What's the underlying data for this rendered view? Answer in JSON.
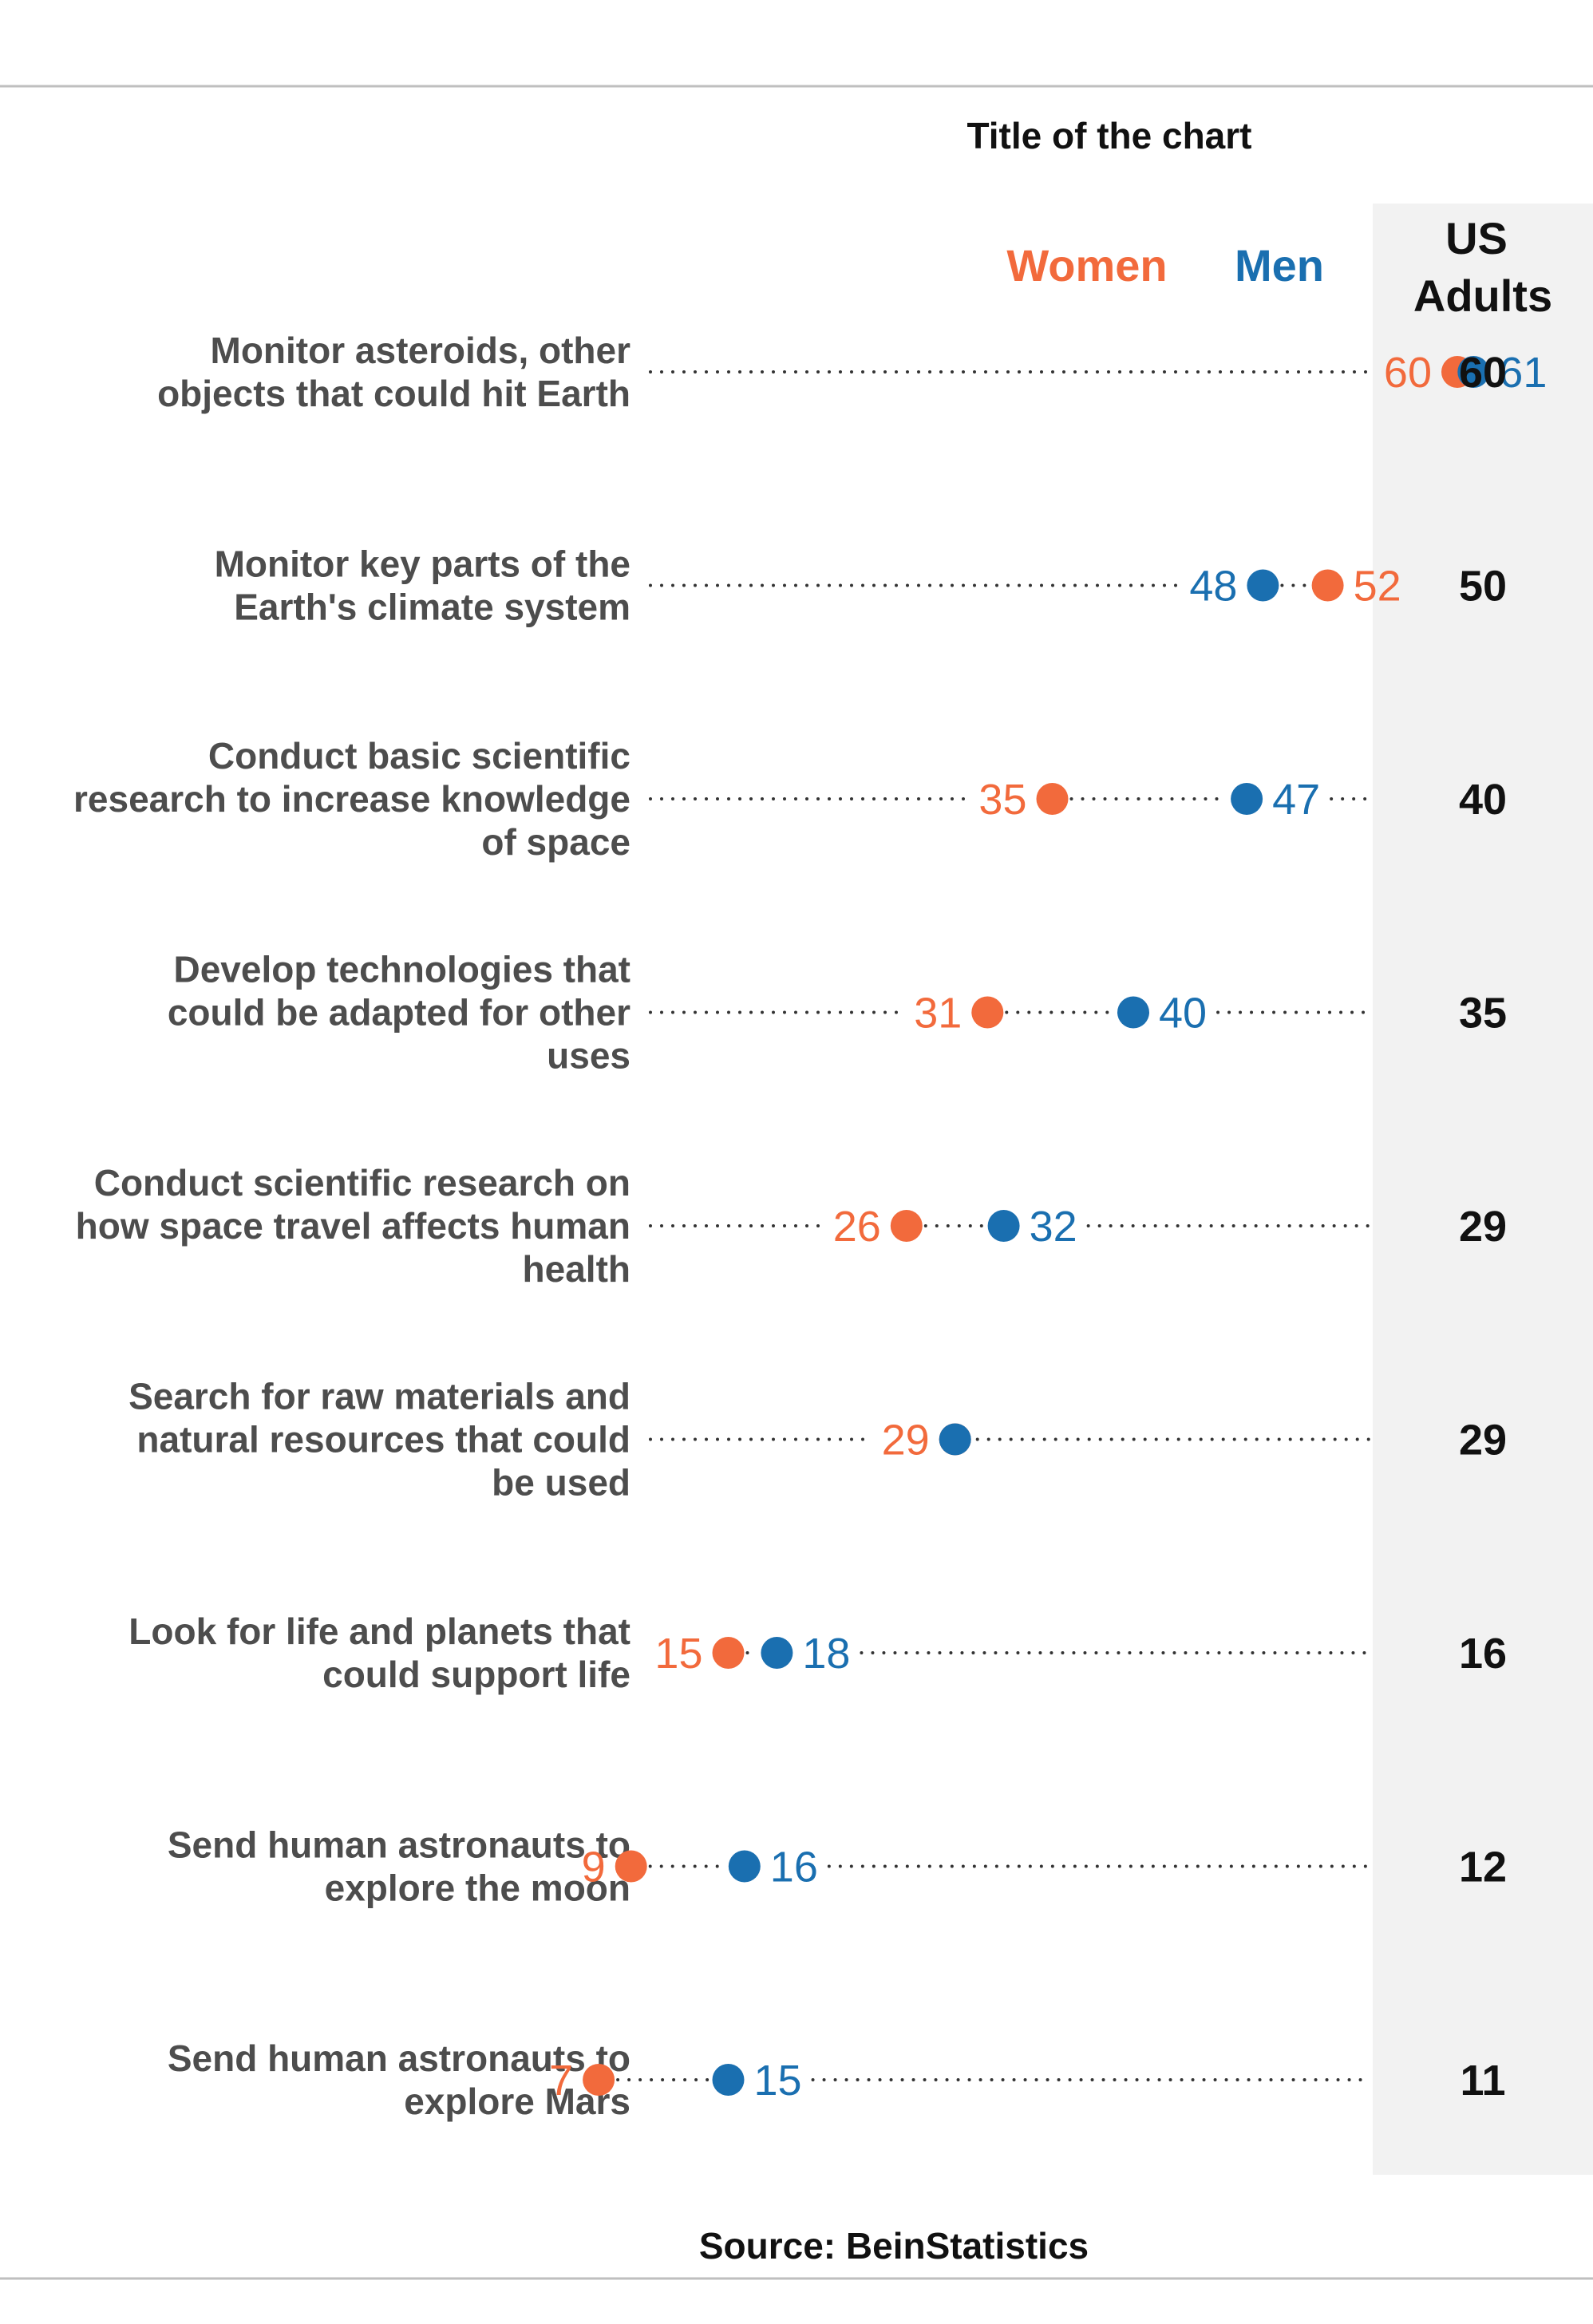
{
  "colors": {
    "women": "#F26A3C",
    "men": "#1A6FB0",
    "label": "#4D4D4D",
    "text": "#111111",
    "panel": "#F2F2F2",
    "rule": "#BFBFBF",
    "dots": "#333333"
  },
  "chart_data": {
    "type": "dot-plot",
    "title": "Title of the chart",
    "source": "Source: BeinStatistics",
    "xlim": [
      0,
      70
    ],
    "legend": {
      "women": "Women",
      "men": "Men",
      "us_header_line1": "US",
      "us_header_line2": "Adults"
    },
    "rows": [
      {
        "label": [
          "Monitor asteroids, other",
          "objects that could hit Earth"
        ],
        "women": 60,
        "men": 61,
        "us_adults": 60
      },
      {
        "label": [
          "Monitor key parts of the",
          "Earth's climate system"
        ],
        "women": 52,
        "men": 48,
        "us_adults": 50
      },
      {
        "label": [
          "Conduct basic scientific",
          "research to increase knowledge",
          "of space"
        ],
        "women": 35,
        "men": 47,
        "us_adults": 40
      },
      {
        "label": [
          "Develop technologies that",
          "could be adapted for other",
          "uses"
        ],
        "women": 31,
        "men": 40,
        "us_adults": 35
      },
      {
        "label": [
          "Conduct scientific research on",
          "how space travel affects human",
          "health"
        ],
        "women": 26,
        "men": 32,
        "us_adults": 29
      },
      {
        "label": [
          "Search for raw materials and",
          "natural resources that could",
          "be used"
        ],
        "women": 29,
        "men": 29,
        "us_adults": 29
      },
      {
        "label": [
          "Look for life and planets that",
          "could support life"
        ],
        "women": 15,
        "men": 18,
        "us_adults": 16
      },
      {
        "label": [
          "Send human astronauts to",
          "explore the moon"
        ],
        "women": 9,
        "men": 16,
        "us_adults": 12
      },
      {
        "label": [
          "Send human astronauts to",
          "explore Mars"
        ],
        "women": 7,
        "men": 15,
        "us_adults": 11
      }
    ]
  }
}
